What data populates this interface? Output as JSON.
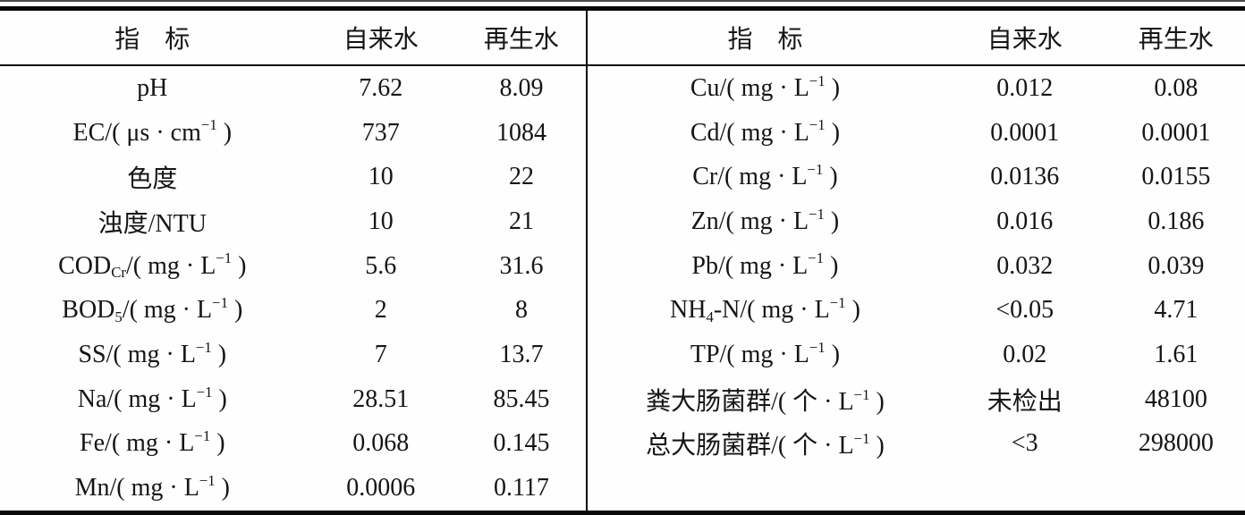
{
  "colors": {
    "text": "#151515",
    "rule": "#0a0a0a",
    "background": "#fefefe"
  },
  "table": {
    "header": {
      "indicator": "指　标",
      "tap_water": "自来水",
      "reclaimed_water": "再生水"
    },
    "left_rows": [
      {
        "label": [
          {
            "t": "pH"
          }
        ],
        "tap": "7.62",
        "rec": "8.09"
      },
      {
        "label": [
          {
            "t": "EC/( μs · cm"
          },
          {
            "sup": "−1"
          },
          {
            "t": " )"
          }
        ],
        "tap": "737",
        "rec": "1084"
      },
      {
        "label": [
          {
            "t": "色度"
          }
        ],
        "tap": "10",
        "rec": "22"
      },
      {
        "label": [
          {
            "t": "浊度/NTU"
          }
        ],
        "tap": "10",
        "rec": "21"
      },
      {
        "label": [
          {
            "t": "COD"
          },
          {
            "sub": "Cr"
          },
          {
            "t": "/( mg · L"
          },
          {
            "sup": "−1"
          },
          {
            "t": " )"
          }
        ],
        "tap": "5.6",
        "rec": "31.6"
      },
      {
        "label": [
          {
            "t": "BOD"
          },
          {
            "sub": "5"
          },
          {
            "t": "/( mg · L"
          },
          {
            "sup": "−1"
          },
          {
            "t": " )"
          }
        ],
        "tap": "2",
        "rec": "8"
      },
      {
        "label": [
          {
            "t": "SS/( mg · L"
          },
          {
            "sup": "−1"
          },
          {
            "t": " )"
          }
        ],
        "tap": "7",
        "rec": "13.7"
      },
      {
        "label": [
          {
            "t": "Na/( mg · L"
          },
          {
            "sup": "−1"
          },
          {
            "t": " )"
          }
        ],
        "tap": "28.51",
        "rec": "85.45"
      },
      {
        "label": [
          {
            "t": "Fe/( mg · L"
          },
          {
            "sup": "−1"
          },
          {
            "t": " )"
          }
        ],
        "tap": "0.068",
        "rec": "0.145"
      },
      {
        "label": [
          {
            "t": "Mn/( mg · L"
          },
          {
            "sup": "−1"
          },
          {
            "t": " )"
          }
        ],
        "tap": "0.0006",
        "rec": "0.117"
      }
    ],
    "right_rows": [
      {
        "label": [
          {
            "t": "Cu/( mg · L"
          },
          {
            "sup": "−1"
          },
          {
            "t": " )"
          }
        ],
        "tap": "0.012",
        "rec": "0.08"
      },
      {
        "label": [
          {
            "t": "Cd/( mg · L"
          },
          {
            "sup": "−1"
          },
          {
            "t": " )"
          }
        ],
        "tap": "0.0001",
        "rec": "0.0001"
      },
      {
        "label": [
          {
            "t": "Cr/( mg · L"
          },
          {
            "sup": "−1"
          },
          {
            "t": " )"
          }
        ],
        "tap": "0.0136",
        "rec": "0.0155"
      },
      {
        "label": [
          {
            "t": "Zn/( mg · L"
          },
          {
            "sup": "−1"
          },
          {
            "t": " )"
          }
        ],
        "tap": "0.016",
        "rec": "0.186"
      },
      {
        "label": [
          {
            "t": "Pb/( mg · L"
          },
          {
            "sup": "−1"
          },
          {
            "t": " )"
          }
        ],
        "tap": "0.032",
        "rec": "0.039"
      },
      {
        "label": [
          {
            "t": "NH"
          },
          {
            "sub": "4"
          },
          {
            "t": "-N/( mg · L"
          },
          {
            "sup": "−1"
          },
          {
            "t": " )"
          }
        ],
        "tap": "<0.05",
        "rec": "4.71"
      },
      {
        "label": [
          {
            "t": "TP/( mg · L"
          },
          {
            "sup": "−1"
          },
          {
            "t": " )"
          }
        ],
        "tap": "0.02",
        "rec": "1.61"
      },
      {
        "label": [
          {
            "t": "粪大肠菌群/( 个 · L"
          },
          {
            "sup": "−1"
          },
          {
            "t": " )"
          }
        ],
        "tap": "未检出",
        "rec": "48100"
      },
      {
        "label": [
          {
            "t": "总大肠菌群/( 个 · L"
          },
          {
            "sup": "−1"
          },
          {
            "t": " )"
          }
        ],
        "tap": "<3",
        "rec": "298000"
      }
    ]
  }
}
